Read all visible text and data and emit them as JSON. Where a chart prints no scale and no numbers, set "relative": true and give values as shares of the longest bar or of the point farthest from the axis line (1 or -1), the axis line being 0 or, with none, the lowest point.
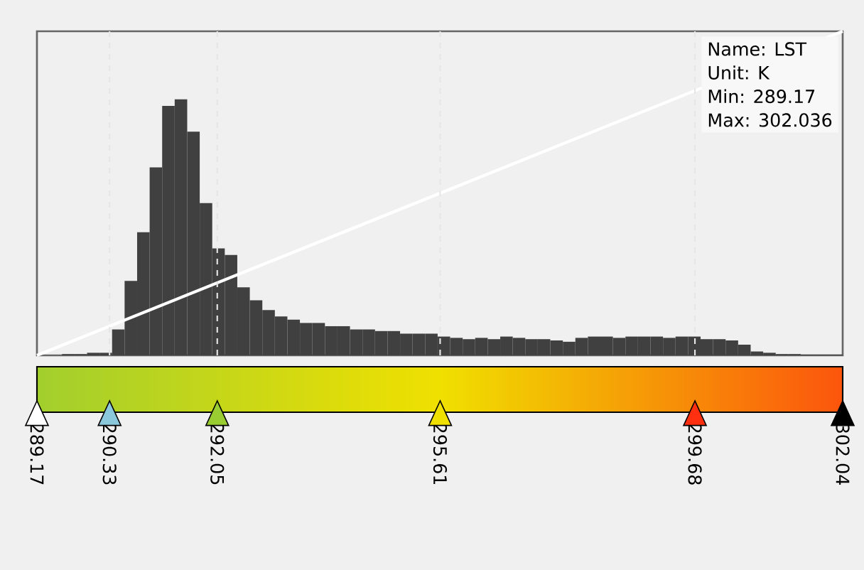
{
  "chart_data": {
    "type": "histogram",
    "relative": true,
    "xlim": [
      289.17,
      302.04
    ],
    "xticks": [
      289.17,
      290.33,
      292.05,
      295.61,
      299.68,
      302.04
    ],
    "bins": [
      289.57,
      289.77,
      289.97,
      290.17,
      290.37,
      290.57,
      290.77,
      290.97,
      291.17,
      291.37,
      291.57,
      291.77,
      291.97,
      292.17,
      292.37,
      292.57,
      292.77,
      292.97,
      293.17,
      293.37,
      293.57,
      293.77,
      293.97,
      294.17,
      294.37,
      294.57,
      294.77,
      294.97,
      295.17,
      295.37,
      295.57,
      295.77,
      295.97,
      296.17,
      296.37,
      296.57,
      296.77,
      296.97,
      297.17,
      297.37,
      297.57,
      297.77,
      297.97,
      298.17,
      298.37,
      298.57,
      298.77,
      298.97,
      299.17,
      299.37,
      299.57,
      299.77,
      299.97,
      300.17,
      300.37,
      300.57,
      300.77,
      300.97,
      301.17,
      301.37,
      301.57,
      301.77,
      302.04
    ],
    "series": [
      {
        "color": "#404040",
        "values": [
          0.004,
          0.004,
          0.008,
          0.008,
          0.08,
          0.23,
          0.38,
          0.58,
          0.77,
          0.79,
          0.69,
          0.47,
          0.33,
          0.31,
          0.21,
          0.17,
          0.14,
          0.12,
          0.11,
          0.1,
          0.1,
          0.09,
          0.09,
          0.08,
          0.08,
          0.075,
          0.075,
          0.067,
          0.067,
          0.067,
          0.058,
          0.054,
          0.05,
          0.054,
          0.05,
          0.058,
          0.054,
          0.05,
          0.05,
          0.046,
          0.042,
          0.054,
          0.058,
          0.058,
          0.054,
          0.058,
          0.058,
          0.058,
          0.054,
          0.058,
          0.058,
          0.05,
          0.05,
          0.046,
          0.033,
          0.012,
          0.008,
          0.004,
          0.004,
          0.0025,
          0.0025,
          0.0025
        ]
      },
      {
        "type": "line",
        "color": "#ffffff",
        "x": [
          289.17,
          302.04
        ],
        "values": [
          0,
          1
        ]
      }
    ],
    "ref_lines": [
      {
        "axis": "x",
        "value": 290.33,
        "color": "#e6e6e6",
        "line_style": "dashed"
      },
      {
        "axis": "x",
        "value": 292.05,
        "color": "#e6e6e6",
        "line_style": "dashed"
      },
      {
        "axis": "x",
        "value": 295.61,
        "color": "#e6e6e6",
        "line_style": "dashed"
      },
      {
        "axis": "x",
        "value": 299.68,
        "color": "#e6e6e6",
        "line_style": "dashed"
      }
    ],
    "annotations": [
      "Name: LST",
      "Unit: K",
      "Min: 289.17",
      "Max: 302.036"
    ],
    "grid": false
  }
}
